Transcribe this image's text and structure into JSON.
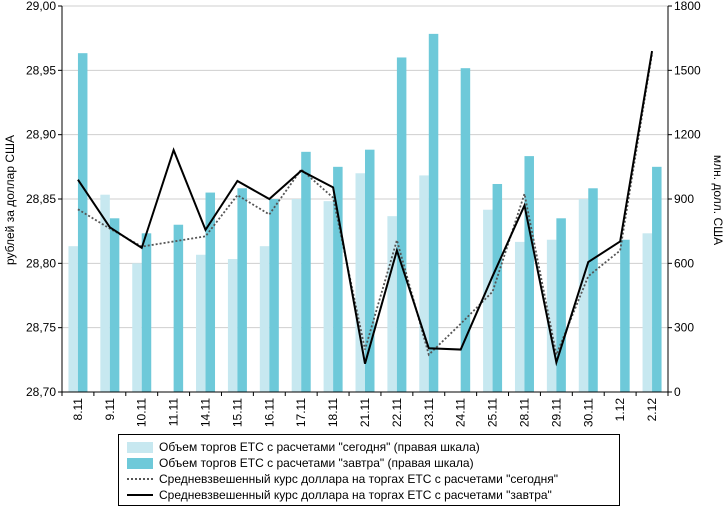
{
  "chart_data": {
    "type": "bar",
    "categories": [
      "8.11",
      "9.11",
      "10.11",
      "11.11",
      "14.11",
      "15.11",
      "16.11",
      "17.11",
      "18.11",
      "21.11",
      "22.11",
      "23.11",
      "24.11",
      "25.11",
      "28.11",
      "29.11",
      "30.11",
      "1.12",
      "2.12"
    ],
    "ylabel": "рублей за доллар США",
    "ylabel_right": "млн. долл. США",
    "ylim": [
      28.7,
      29.0
    ],
    "y_ticks": [
      "28,70",
      "28,75",
      "28,80",
      "28,85",
      "28,90",
      "28,95",
      "29,00"
    ],
    "y2lim": [
      0,
      1800
    ],
    "y2_ticks": [
      "0",
      "300",
      "600",
      "900",
      "1200",
      "1500",
      "1800"
    ],
    "series": [
      {
        "name": "Объем торгов ЕТС с расчетами \"сегодня\" (правая шкала)",
        "kind": "bar",
        "axis": "right",
        "color": "#c7e8f0",
        "values": [
          680,
          920,
          600,
          0,
          640,
          620,
          680,
          900,
          890,
          1020,
          820,
          1010,
          0,
          850,
          700,
          710,
          900,
          0,
          740
        ]
      },
      {
        "name": "Объем торгов ЕТС с расчетами \"завтра\" (правая шкала)",
        "kind": "bar",
        "axis": "right",
        "color": "#6ec9d9",
        "values": [
          1580,
          810,
          740,
          780,
          930,
          950,
          900,
          1120,
          1050,
          1130,
          1560,
          1670,
          1510,
          970,
          1100,
          810,
          950,
          710,
          1050
        ]
      },
      {
        "name": "Средневзвешенный курс доллара на торгах ЕТС с расчетами \"сегодня\"",
        "kind": "line",
        "axis": "left",
        "style": "dotted",
        "color": "#555555",
        "values": [
          28.842,
          28.827,
          28.813,
          28.817,
          28.821,
          28.853,
          28.838,
          28.873,
          28.851,
          28.733,
          28.818,
          28.729,
          28.753,
          28.778,
          28.854,
          28.729,
          28.79,
          28.81,
          28.963
        ]
      },
      {
        "name": "Средневзвешенный курс доллара на торгах ЕТС с расчетами \"завтра\"",
        "kind": "line",
        "axis": "left",
        "style": "solid",
        "color": "#000000",
        "values": [
          28.865,
          28.828,
          28.812,
          28.888,
          28.826,
          28.864,
          28.85,
          28.872,
          28.859,
          28.722,
          28.81,
          28.734,
          28.733,
          28.79,
          28.845,
          28.723,
          28.801,
          28.817,
          28.965
        ]
      }
    ],
    "grid": true,
    "legend_position": "bottom"
  }
}
